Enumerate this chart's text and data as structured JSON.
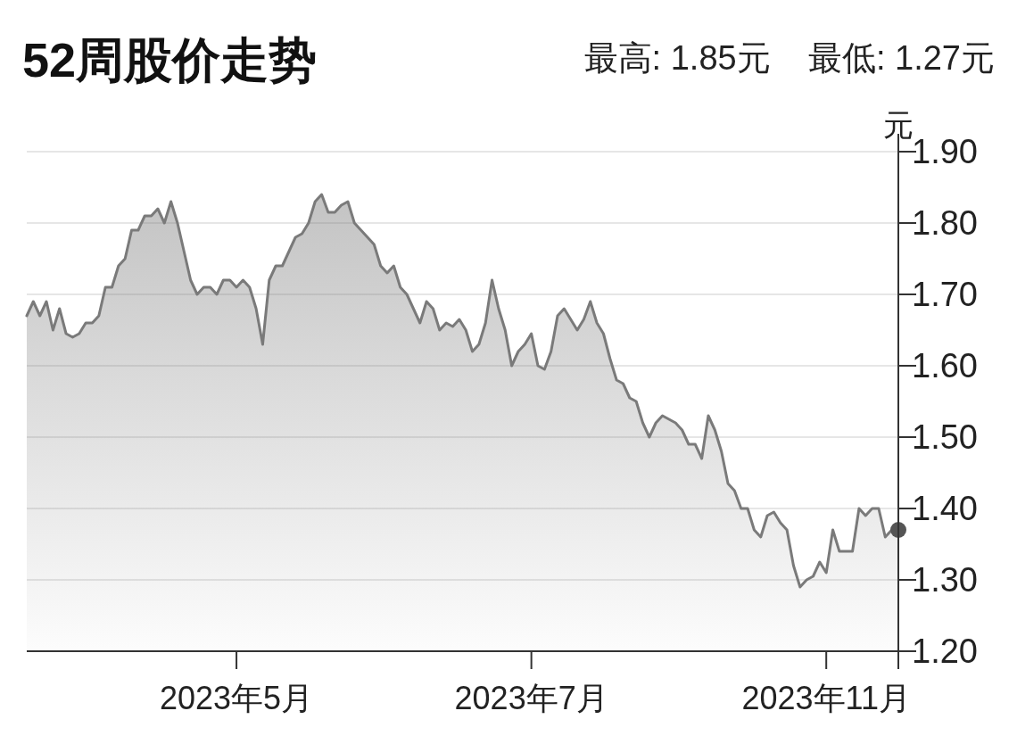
{
  "chart_data": {
    "type": "area",
    "title": "52周股价走势",
    "subtitle": "最高: 1.85元    最低: 1.27元",
    "ylabel": "元",
    "categories": [
      null,
      null,
      null,
      null,
      null,
      null,
      null,
      null,
      null,
      null,
      null,
      null,
      null,
      null,
      null,
      null,
      null,
      null,
      null,
      null,
      null,
      null,
      null,
      null,
      null,
      null,
      null,
      null,
      null,
      null,
      null,
      null,
      "2023年5月",
      null,
      null,
      null,
      null,
      null,
      null,
      null,
      null,
      null,
      null,
      null,
      null,
      null,
      null,
      null,
      null,
      null,
      null,
      null,
      null,
      null,
      null,
      null,
      null,
      null,
      null,
      null,
      null,
      null,
      null,
      null,
      null,
      null,
      null,
      null,
      null,
      null,
      null,
      null,
      null,
      null,
      null,
      null,
      null,
      "2023年7月",
      null,
      null,
      null,
      null,
      null,
      null,
      null,
      null,
      null,
      null,
      null,
      null,
      null,
      null,
      null,
      null,
      null,
      null,
      null,
      null,
      null,
      null,
      null,
      null,
      null,
      null,
      null,
      null,
      null,
      null,
      null,
      null,
      null,
      null,
      null,
      null,
      null,
      null,
      null,
      null,
      null,
      null,
      null,
      null,
      "2023年11月",
      null,
      null,
      null,
      null,
      null,
      null,
      null,
      null,
      null,
      null,
      null
    ],
    "series": [
      {
        "color": "#7a7a7a",
        "values": [
          1.67,
          1.69,
          1.67,
          1.69,
          1.65,
          1.68,
          1.645,
          1.64,
          1.645,
          1.66,
          1.66,
          1.67,
          1.71,
          1.71,
          1.74,
          1.75,
          1.79,
          1.79,
          1.81,
          1.81,
          1.82,
          1.8,
          1.83,
          1.8,
          1.76,
          1.72,
          1.7,
          1.71,
          1.71,
          1.7,
          1.72,
          1.72,
          1.71,
          1.72,
          1.71,
          1.68,
          1.63,
          1.72,
          1.74,
          1.74,
          1.76,
          1.78,
          1.785,
          1.8,
          1.83,
          1.84,
          1.815,
          1.815,
          1.825,
          1.83,
          1.8,
          1.79,
          1.78,
          1.77,
          1.74,
          1.73,
          1.74,
          1.71,
          1.7,
          1.68,
          1.66,
          1.69,
          1.68,
          1.65,
          1.66,
          1.655,
          1.665,
          1.65,
          1.62,
          1.63,
          1.66,
          1.72,
          1.68,
          1.65,
          1.6,
          1.62,
          1.63,
          1.645,
          1.6,
          1.595,
          1.62,
          1.67,
          1.68,
          1.665,
          1.65,
          1.665,
          1.69,
          1.66,
          1.645,
          1.61,
          1.58,
          1.575,
          1.555,
          1.55,
          1.52,
          1.5,
          1.52,
          1.53,
          1.525,
          1.52,
          1.51,
          1.49,
          1.49,
          1.47,
          1.53,
          1.51,
          1.48,
          1.435,
          1.425,
          1.4,
          1.4,
          1.37,
          1.36,
          1.39,
          1.395,
          1.38,
          1.37,
          1.32,
          1.29,
          1.3,
          1.305,
          1.325,
          1.31,
          1.37,
          1.34,
          1.34,
          1.34,
          1.4,
          1.39,
          1.4,
          1.4,
          1.36,
          1.37,
          1.37
        ]
      },
      {
        "type": "scatter",
        "color": "#555555",
        "values": [
          null,
          null,
          null,
          null,
          null,
          null,
          null,
          null,
          null,
          null,
          null,
          null,
          null,
          null,
          null,
          null,
          null,
          null,
          null,
          null,
          null,
          null,
          null,
          null,
          null,
          null,
          null,
          null,
          null,
          null,
          null,
          null,
          null,
          null,
          null,
          null,
          null,
          null,
          null,
          null,
          null,
          null,
          null,
          null,
          null,
          null,
          null,
          null,
          null,
          null,
          null,
          null,
          null,
          null,
          null,
          null,
          null,
          null,
          null,
          null,
          null,
          null,
          null,
          null,
          null,
          null,
          null,
          null,
          null,
          null,
          null,
          null,
          null,
          null,
          null,
          null,
          null,
          null,
          null,
          null,
          null,
          null,
          null,
          null,
          null,
          null,
          null,
          null,
          null,
          null,
          null,
          null,
          null,
          null,
          null,
          null,
          null,
          null,
          null,
          null,
          null,
          null,
          null,
          null,
          null,
          null,
          null,
          null,
          null,
          null,
          null,
          null,
          null,
          null,
          null,
          null,
          null,
          null,
          null,
          null,
          null,
          null,
          null,
          null,
          null,
          null,
          null,
          null,
          null,
          null,
          null,
          null,
          null,
          1.37
        ]
      }
    ],
    "ylim": [
      1.2,
      1.9
    ],
    "yticks": [
      {
        "value": 1.2,
        "label": "1.20"
      },
      {
        "value": 1.3,
        "label": "1.30"
      },
      {
        "value": 1.4,
        "label": "1.40"
      },
      {
        "value": 1.5,
        "label": "1.50"
      },
      {
        "value": 1.6,
        "label": "1.60"
      },
      {
        "value": 1.7,
        "label": "1.70"
      },
      {
        "value": 1.8,
        "label": "1.80"
      },
      {
        "value": 1.9,
        "label": "1.90"
      }
    ],
    "grid": "y"
  }
}
